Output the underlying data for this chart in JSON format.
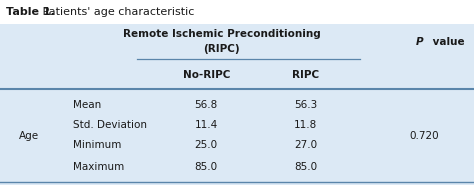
{
  "title_bold": "Table 1.",
  "title_rest": " Patients' age characteristic",
  "header_group_line1": "Remote Ischemic Preconditioning",
  "header_group_line2": "(RIPC)",
  "col1_header": "No-RIPC",
  "col2_header": "RIPC",
  "pvalue_header_italic": "P",
  "pvalue_header_normal": " value",
  "row_label_group": "Age",
  "row_labels": [
    "Mean",
    "Std. Deviation",
    "Minimum",
    "Maximum"
  ],
  "col1_values": [
    "56.8",
    "11.4",
    "25.0",
    "85.0"
  ],
  "col2_values": [
    "56.3",
    "11.8",
    "27.0",
    "85.0"
  ],
  "pvalue": "0.720",
  "bg_color": "#dce9f5",
  "border_color": "#5a85aa",
  "text_color": "#1a1a1a",
  "title_fontsize": 8.0,
  "header_fontsize": 7.5,
  "data_fontsize": 7.5
}
